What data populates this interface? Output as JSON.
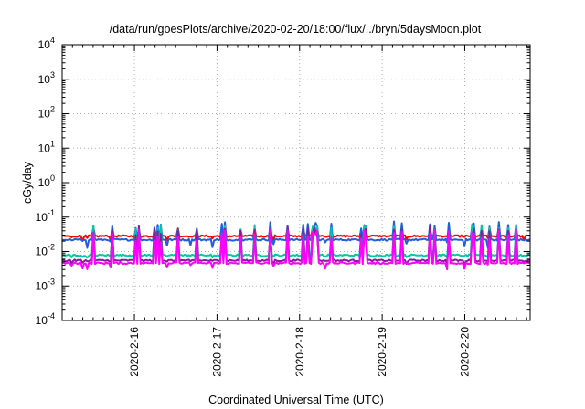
{
  "chart_data": {
    "type": "line",
    "title": "/data/run/goesPlots/archive/2020-02-20/18:00/flux/../bryn/5daysMoon.plot",
    "xlabel": "Coordinated Universal Time (UTC)",
    "ylabel": "cGy/day",
    "yscale": "log",
    "ylim": [
      0.0001,
      10000
    ],
    "xlim": [
      "2020-02-15T03:00",
      "2020-02-20T19:00"
    ],
    "grid": true,
    "y_ticks": [
      {
        "base": "10",
        "exp": "-4"
      },
      {
        "base": "10",
        "exp": "-3"
      },
      {
        "base": "10",
        "exp": "-2"
      },
      {
        "base": "10",
        "exp": "-1"
      },
      {
        "base": "10",
        "exp": "0"
      },
      {
        "base": "10",
        "exp": "1"
      },
      {
        "base": "10",
        "exp": "2"
      },
      {
        "base": "10",
        "exp": "3"
      },
      {
        "base": "10",
        "exp": "4"
      }
    ],
    "x_ticks": [
      "2020-2-16",
      "2020-2-17",
      "2020-2-18",
      "2020-2-19",
      "2020-2-20"
    ],
    "series": [
      {
        "color": "#ff0000",
        "baseline": 0.028,
        "spike_max": 0.05,
        "spike_min": 0.02
      },
      {
        "color": "#1f5fe0",
        "baseline": 0.022,
        "spike_max": 0.075,
        "spike_min": 0.012
      },
      {
        "color": "#00c8a0",
        "baseline": 0.0078,
        "spike_max": 0.06,
        "spike_min": 0.006
      },
      {
        "color": "#8a1aa0",
        "baseline": 0.0055,
        "spike_max": 0.055,
        "spike_min": 0.004
      },
      {
        "color": "#ff00ff",
        "baseline": 0.0046,
        "spike_max": 0.045,
        "spike_min": 0.003
      }
    ]
  }
}
